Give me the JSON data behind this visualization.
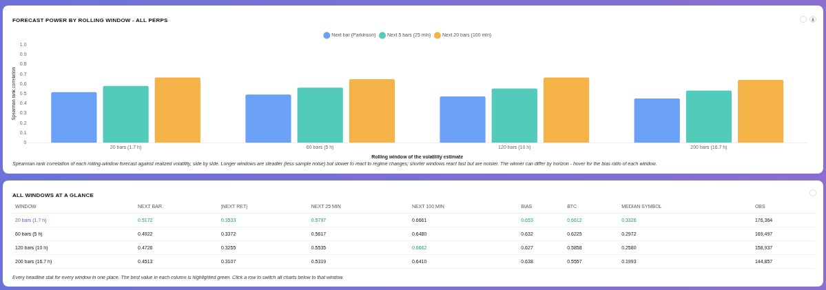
{
  "chart_data": [
    {
      "type": "bar",
      "title": "FORECAST POWER BY ROLLING WINDOW - ALL PERPS",
      "xlabel": "Rolling window of the volatility estimate",
      "ylabel": "Spearman rank correlation",
      "categories": [
        "20 bars (1.7 h)",
        "60 bars (5 h)",
        "120 bars (10 h)",
        "200 bars (16.7 h)"
      ],
      "series": [
        {
          "name": "Next bar (Parkinson)",
          "color": "#6aa0f5",
          "values": [
            0.5172,
            0.4922,
            0.4726,
            0.4513
          ]
        },
        {
          "name": "Next 5 bars (25 min)",
          "color": "#52cbbb",
          "values": [
            0.5797,
            0.5617,
            0.5535,
            0.5319
          ]
        },
        {
          "name": "Next 20 bars (100 min)",
          "color": "#f5b247",
          "values": [
            0.6661,
            0.648,
            0.6662,
            0.641
          ]
        }
      ],
      "ylim": [
        0,
        1
      ],
      "yticks": [
        0,
        {
          "value": 0.1,
          "label": "0.1"
        },
        {
          "value": 0.2,
          "label": "0.2"
        },
        {
          "value": 0.3,
          "label": "0.3"
        },
        {
          "value": 0.4,
          "label": "0.4"
        },
        {
          "value": 0.5,
          "label": "0.5"
        },
        {
          "value": 0.6,
          "label": "0.6"
        },
        {
          "value": 0.7,
          "label": "0.7"
        },
        {
          "value": 0.8,
          "label": "0.8"
        },
        {
          "value": 0.9,
          "label": "0.9"
        },
        {
          "value": 1,
          "label": "1.0"
        }
      ],
      "grid": false,
      "legend": "top",
      "annotations": [
        "Spearman rank correlation of each rolling-window forecast against realized volatility, side by side. Longer windows are steadier (less sample noise) but slower to react to regime changes; shorter windows react fast but are noisier. The winner can differ by horizon - hover for the bias ratio of each window."
      ]
    },
    {
      "type": "heatmap",
      "title": "ALL WINDOWS AT A GLANCE",
      "categories": [
        "WINDOW",
        "NEXT BAR",
        "|NEXT RET|",
        "NEXT 25 MIN",
        "NEXT 100 MIN",
        "BIAS",
        "BTC",
        "MEDIAN SYMBOL",
        "OBS"
      ],
      "y_categories": [
        "20 bars (1.7 h)",
        "60 bars (5 h)",
        "120 bars (10 h)",
        "200 bars (16.7 h)"
      ],
      "cells": [
        [
          null,
          0.5172,
          0.3533,
          0.5797,
          0.6661,
          0.653,
          0.6612,
          0.3326,
          null
        ],
        [
          null,
          0.4922,
          0.3372,
          0.5617,
          0.648,
          0.632,
          0.6225,
          0.2972,
          null
        ],
        [
          null,
          0.4726,
          0.3255,
          0.5535,
          0.6662,
          0.627,
          0.5858,
          0.258,
          null
        ],
        [
          null,
          0.4513,
          0.3107,
          0.5319,
          0.641,
          0.638,
          0.5557,
          0.1993,
          null
        ]
      ],
      "cell_labels": [
        [
          null,
          "0.5172",
          "0.3533",
          "0.5797",
          "0.6661",
          "0.653",
          "0.6612",
          "0.3326",
          "176,364"
        ],
        [
          null,
          "0.4922",
          "0.3372",
          "0.5617",
          "0.6480",
          "0.632",
          "0.6225",
          "0.2972",
          "169,497"
        ],
        [
          null,
          "0.4726",
          "0.3255",
          "0.5535",
          "0.6662",
          "0.627",
          "0.5858",
          "0.2580",
          "158,937"
        ],
        [
          null,
          "0.4513",
          "0.3107",
          "0.5319",
          "0.6410",
          "0.638",
          "0.5557",
          "0.1993",
          "144,857"
        ]
      ],
      "annotations": [
        "Every headline stat for every window in one place. The best value in each column is highlighted green. Click a row to switch all charts below to that window."
      ]
    }
  ]
}
